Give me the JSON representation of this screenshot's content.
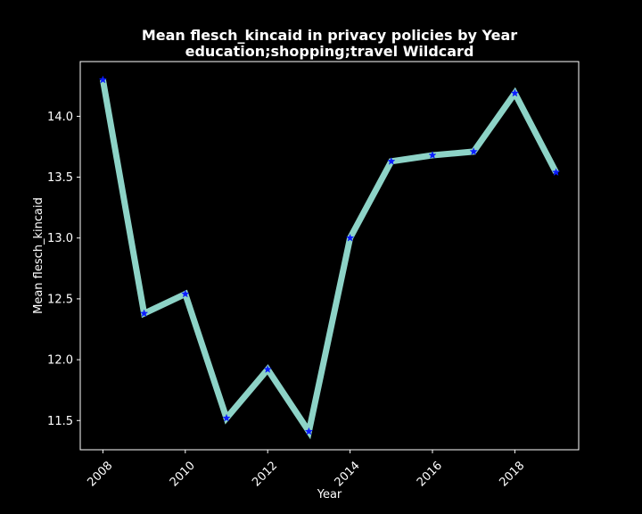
{
  "colors": {
    "background": "#000000",
    "foreground": "#ffffff",
    "line": "#8dd3c7",
    "marker": "#0b1cff"
  },
  "chart_data": {
    "type": "line",
    "title": "Mean flesch_kincaid in privacy policies by Year\neducation;shopping;travel Wildcard",
    "xlabel": "Year",
    "ylabel": "Mean flesch_kincaid",
    "x": [
      2008,
      2009,
      2010,
      2011,
      2012,
      2013,
      2014,
      2015,
      2016,
      2017,
      2018,
      2019
    ],
    "series": [
      {
        "values": [
          14.3,
          12.38,
          12.54,
          11.52,
          11.92,
          11.41,
          13.0,
          13.63,
          13.68,
          13.71,
          14.19,
          13.54
        ]
      }
    ],
    "xlim": [
      2007.45,
      2019.55
    ],
    "ylim": [
      11.26,
      14.45
    ],
    "xticks": [
      2008,
      2010,
      2012,
      2014,
      2016,
      2018
    ],
    "xtick_labels": [
      "2008",
      "2010",
      "2012",
      "2014",
      "2016",
      "2018"
    ],
    "yticks": [
      11.5,
      12.0,
      12.5,
      13.0,
      13.5,
      14.0
    ],
    "ytick_labels": [
      "11.5",
      "12.0",
      "12.5",
      "13.0",
      "13.5",
      "14.0"
    ],
    "marker": "star",
    "grid": false,
    "legend": "none"
  }
}
